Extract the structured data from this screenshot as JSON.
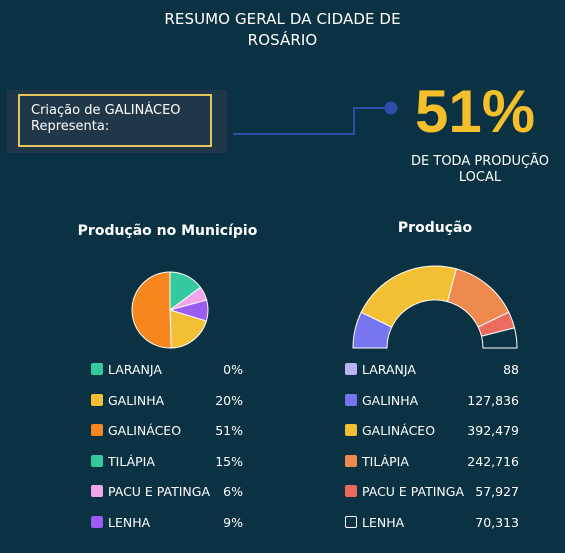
{
  "header": {
    "title_line1": "RESUMO GERAL DA CIDADE DE",
    "title_line2": "ROSÁRIO"
  },
  "highlight": {
    "label_line1": "Criação de GALINÁCEO",
    "label_line2": "Representa:",
    "value": "51%",
    "subtitle_line1": "DE TODA PRODUÇÃO",
    "subtitle_line2": "LOCAL",
    "value_color": "#f5bf2b",
    "connector_color": "#2d4fa8"
  },
  "left_panel": {
    "title": "Produção no Município",
    "legend": [
      {
        "label": "LARANJA",
        "value": "0%",
        "color": "#35c9a0"
      },
      {
        "label": "GALINHA",
        "value": "20%",
        "color": "#f3bf35"
      },
      {
        "label": "GALINÁCEO",
        "value": "51%",
        "color": "#f7861f"
      },
      {
        "label": "TILÁPIA",
        "value": "15%",
        "color": "#35c9a0"
      },
      {
        "label": "PACU E PATINGA",
        "value": "6%",
        "color": "#f3a5ec"
      },
      {
        "label": "LENHA",
        "value": "9%",
        "color": "#9c5cf2"
      }
    ]
  },
  "right_panel": {
    "title": "Produção",
    "legend": [
      {
        "label": "LARANJA",
        "value": "88",
        "color": "#b9b6f3"
      },
      {
        "label": "GALINHA",
        "value": "127,836",
        "color": "#7775f0"
      },
      {
        "label": "GALINÁCEO",
        "value": "392,479",
        "color": "#f3bf35"
      },
      {
        "label": "TILÁPIA",
        "value": "242,716",
        "color": "#ef8a4e"
      },
      {
        "label": "PACU E PATINGA",
        "value": "57,927",
        "color": "#ec6a5e"
      },
      {
        "label": "LENHA",
        "value": "70,313",
        "color": "#0b3243"
      }
    ]
  },
  "chart_data": [
    {
      "type": "pie",
      "title": "Produção no Município",
      "categories": [
        "LARANJA",
        "GALINHA",
        "GALINÁCEO",
        "TILÁPIA",
        "PACU E PATINGA",
        "LENHA"
      ],
      "values": [
        0,
        20,
        51,
        15,
        6,
        9
      ],
      "colors": [
        "#35c9a0",
        "#f3bf35",
        "#f7861f",
        "#35c9a0",
        "#f3a5ec",
        "#9c5cf2"
      ],
      "unit": "%"
    },
    {
      "type": "pie",
      "title": "Produção",
      "variant": "half-donut",
      "categories": [
        "LARANJA",
        "GALINHA",
        "GALINÁCEO",
        "TILÁPIA",
        "PACU E PATINGA",
        "LENHA"
      ],
      "values": [
        88,
        127836,
        392479,
        242716,
        57927,
        70313
      ],
      "colors": [
        "#b9b6f3",
        "#7775f0",
        "#f3bf35",
        "#ef8a4e",
        "#ec6a5e",
        "#0b3243"
      ]
    }
  ]
}
